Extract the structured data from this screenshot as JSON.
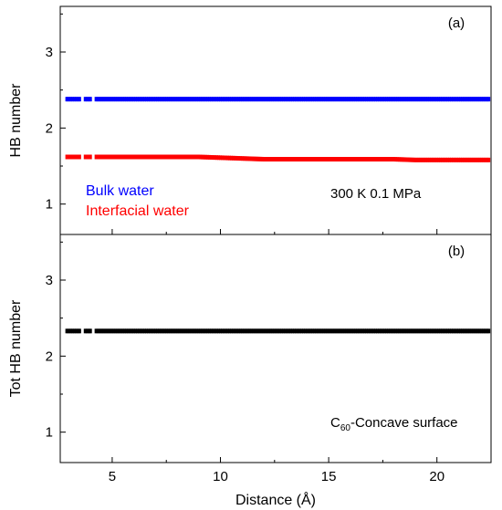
{
  "chart_data": [
    {
      "type": "scatter",
      "panel_label": "(a)",
      "ylabel": "HB number",
      "xlim": [
        2.6,
        22.5
      ],
      "ylim": [
        0.6,
        3.6
      ],
      "yticks": [
        1,
        2,
        3
      ],
      "xticks": [
        5,
        10,
        15,
        20
      ],
      "annotation": "300 K  0.1 MPa",
      "legend_position": "bottom-left",
      "series": [
        {
          "name": "Bulk water",
          "color": "#0000ff",
          "x": [
            2.9,
            3.5,
            4.0,
            4.5,
            5.0,
            6.0,
            7.0,
            8.0,
            9.0,
            10.0,
            11.0,
            12.0,
            13.0,
            14.0,
            15.0,
            16.0,
            17.0,
            18.0,
            19.0,
            20.0,
            21.0,
            22.4
          ],
          "y": [
            2.38,
            2.38,
            2.38,
            2.38,
            2.38,
            2.38,
            2.38,
            2.38,
            2.38,
            2.38,
            2.38,
            2.38,
            2.38,
            2.38,
            2.38,
            2.38,
            2.38,
            2.38,
            2.38,
            2.38,
            2.38,
            2.38
          ]
        },
        {
          "name": "Interfacial water",
          "color": "#ff0000",
          "x": [
            2.9,
            3.5,
            4.0,
            4.5,
            5.0,
            6.0,
            7.0,
            8.0,
            9.0,
            10.0,
            11.0,
            12.0,
            13.0,
            14.0,
            15.0,
            16.0,
            17.0,
            18.0,
            19.0,
            20.0,
            21.0,
            22.4
          ],
          "y": [
            1.62,
            1.62,
            1.62,
            1.62,
            1.62,
            1.62,
            1.62,
            1.62,
            1.62,
            1.61,
            1.6,
            1.59,
            1.59,
            1.59,
            1.59,
            1.59,
            1.59,
            1.59,
            1.58,
            1.58,
            1.58,
            1.58
          ]
        }
      ]
    },
    {
      "type": "scatter",
      "panel_label": "(b)",
      "ylabel": "Tot HB number",
      "xlabel": "Distance (Å)",
      "xlim": [
        2.6,
        22.5
      ],
      "ylim": [
        0.6,
        3.6
      ],
      "yticks": [
        1,
        2,
        3
      ],
      "xticks": [
        5,
        10,
        15,
        20
      ],
      "annotation_main": "C",
      "annotation_sub": "60",
      "annotation_rest": "-Concave surface",
      "series": [
        {
          "color": "#000000",
          "x": [
            2.9,
            3.5,
            4.0,
            4.5,
            5.0,
            6.0,
            7.0,
            8.0,
            9.0,
            10.0,
            11.0,
            12.0,
            13.0,
            14.0,
            15.0,
            16.0,
            17.0,
            18.0,
            19.0,
            20.0,
            21.0,
            22.4
          ],
          "y": [
            2.33,
            2.33,
            2.33,
            2.33,
            2.33,
            2.33,
            2.33,
            2.33,
            2.33,
            2.33,
            2.33,
            2.33,
            2.33,
            2.33,
            2.33,
            2.33,
            2.33,
            2.33,
            2.33,
            2.33,
            2.33,
            2.33
          ]
        }
      ]
    }
  ]
}
